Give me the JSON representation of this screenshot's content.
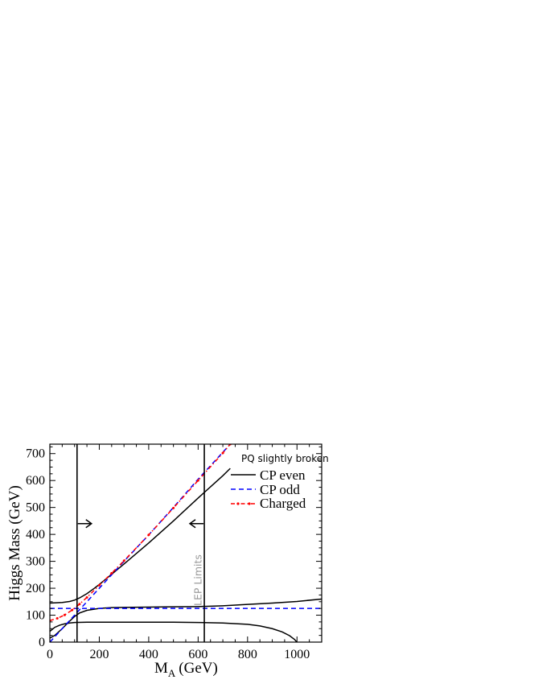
{
  "chart_data": {
    "type": "line",
    "title": "",
    "annotation_title": "PQ slightly broken",
    "xlabel_main": "M",
    "xlabel_sub": "A",
    "xlabel_unit": "(GeV)",
    "ylabel": "Higgs Mass (GeV)",
    "xlim": [
      0,
      1100
    ],
    "ylim": [
      0,
      735
    ],
    "x_ticks": [
      0,
      200,
      400,
      600,
      800,
      1000
    ],
    "y_ticks": [
      0,
      100,
      200,
      300,
      400,
      500,
      600,
      700
    ],
    "grid": false,
    "legend_position": "top-right",
    "legend": [
      {
        "label": "CP even",
        "style": "solid",
        "color": "#000000"
      },
      {
        "label": "CP odd",
        "style": "dashed",
        "color": "#0000ff"
      },
      {
        "label": "Charged",
        "style": "dash-dot",
        "color": "#ff0000"
      }
    ],
    "series": [
      {
        "kind": "cp-even-heavy",
        "style": "solid",
        "color": "#000000",
        "x": [
          0,
          50,
          80,
          100,
          120,
          150,
          180,
          200,
          250,
          300,
          400,
          500,
          600,
          700,
          730
        ],
        "y": [
          145,
          147,
          151,
          156,
          164,
          180,
          200,
          214,
          252,
          290,
          368,
          450,
          535,
          618,
          645
        ]
      },
      {
        "kind": "cp-even-middle",
        "style": "solid",
        "color": "#000000",
        "x": [
          0,
          20,
          50,
          80,
          100,
          120,
          150,
          200,
          250,
          300,
          400,
          500,
          600,
          700,
          800,
          900,
          1000,
          1100
        ],
        "y": [
          15,
          25,
          50,
          78,
          95,
          108,
          118,
          125,
          128,
          129,
          130,
          131,
          132,
          135,
          140,
          145,
          151,
          160
        ]
      },
      {
        "kind": "cp-even-light",
        "style": "solid",
        "color": "#000000",
        "x": [
          0,
          20,
          40,
          60,
          80,
          100,
          150,
          200,
          300,
          400,
          500,
          600,
          700,
          800,
          850,
          900,
          940,
          970,
          990,
          1000
        ],
        "y": [
          40,
          55,
          63,
          68,
          71,
          73,
          74,
          74,
          74,
          74,
          74,
          73,
          71,
          66,
          60,
          50,
          38,
          24,
          10,
          0
        ]
      },
      {
        "kind": "cp-odd-flat",
        "style": "dashed",
        "color": "#0000ff",
        "x": [
          0,
          1100
        ],
        "y": [
          125,
          125
        ]
      },
      {
        "kind": "cp-odd-rising",
        "style": "dashed",
        "color": "#0000ff",
        "x": [
          0,
          100,
          200,
          300,
          400,
          500,
          600,
          700,
          730
        ],
        "y": [
          0,
          100,
          200,
          300,
          398,
          500,
          605,
          705,
          735
        ]
      },
      {
        "kind": "charged",
        "style": "dash-dot",
        "color": "#ff0000",
        "x": [
          0,
          30,
          60,
          90,
          120,
          150,
          200,
          250,
          300,
          400,
          500,
          600,
          700,
          730
        ],
        "y": [
          80,
          88,
          101,
          119,
          141,
          166,
          211,
          256,
          302,
          398,
          498,
          600,
          702,
          735
        ]
      }
    ],
    "vertical_lines": [
      {
        "x": 110,
        "color": "#000000"
      },
      {
        "x": 625,
        "color": "#000000"
      }
    ],
    "arrows": [
      {
        "x": 110,
        "y": 440,
        "direction": "right"
      },
      {
        "x": 625,
        "y": 440,
        "direction": "left"
      }
    ],
    "region_label": {
      "text": "LEP Limits",
      "x": 600,
      "y": 230,
      "color": "#9a9a9a"
    }
  }
}
